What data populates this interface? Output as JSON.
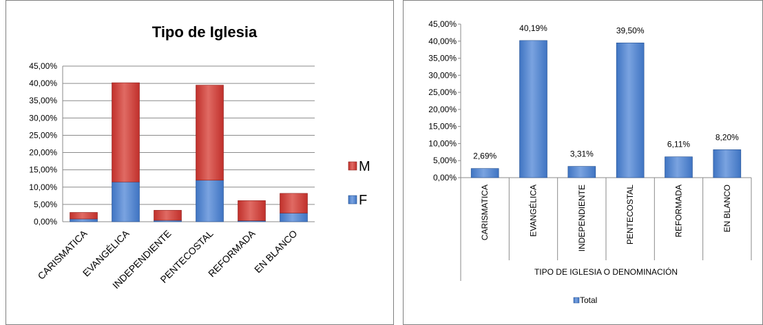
{
  "colors": {
    "M": "#c0302b",
    "F": "#3f74c2",
    "total": "#3f74c2",
    "grid": "#8a8a8a"
  },
  "chart_data": [
    {
      "type": "bar",
      "stacked": true,
      "title": "Tipo de Iglesia",
      "categories": [
        "CARISMATICA",
        "EVANGÉLICA",
        "INDEPENDIENTE",
        "PENTECOSTAL",
        "REFORMADA",
        "EN BLANCO"
      ],
      "series": [
        {
          "name": "F",
          "values": [
            0.8,
            11.5,
            0.4,
            12.0,
            0.3,
            2.5
          ]
        },
        {
          "name": "M",
          "values": [
            1.89,
            28.69,
            2.91,
            27.5,
            5.81,
            5.7
          ]
        }
      ],
      "yticks": [
        "0,00%",
        "5,00%",
        "10,00%",
        "15,00%",
        "20,00%",
        "25,00%",
        "30,00%",
        "35,00%",
        "40,00%",
        "45,00%"
      ],
      "ylim": [
        0,
        45
      ],
      "grid": true,
      "legend_position": "right",
      "legend_order": [
        "M",
        "F"
      ]
    },
    {
      "type": "bar",
      "categories": [
        "CARISMATICA",
        "EVANGÉLICA",
        "INDEPENDIENTE",
        "PENTECOSTAL",
        "REFORMADA",
        "EN BLANCO"
      ],
      "series": [
        {
          "name": "Total",
          "values": [
            2.69,
            40.19,
            3.31,
            39.5,
            6.11,
            8.2
          ]
        }
      ],
      "data_labels": [
        "2,69%",
        "40,19%",
        "3,31%",
        "39,50%",
        "6,11%",
        "8,20%"
      ],
      "xlabel": "TIPO DE IGLESIA O DENOMINACIÓN",
      "yticks": [
        "0,00%",
        "5,00%",
        "10,00%",
        "15,00%",
        "20,00%",
        "25,00%",
        "30,00%",
        "35,00%",
        "40,00%",
        "45,00%"
      ],
      "ylim": [
        0,
        45
      ],
      "grid": false,
      "legend_position": "bottom"
    }
  ]
}
